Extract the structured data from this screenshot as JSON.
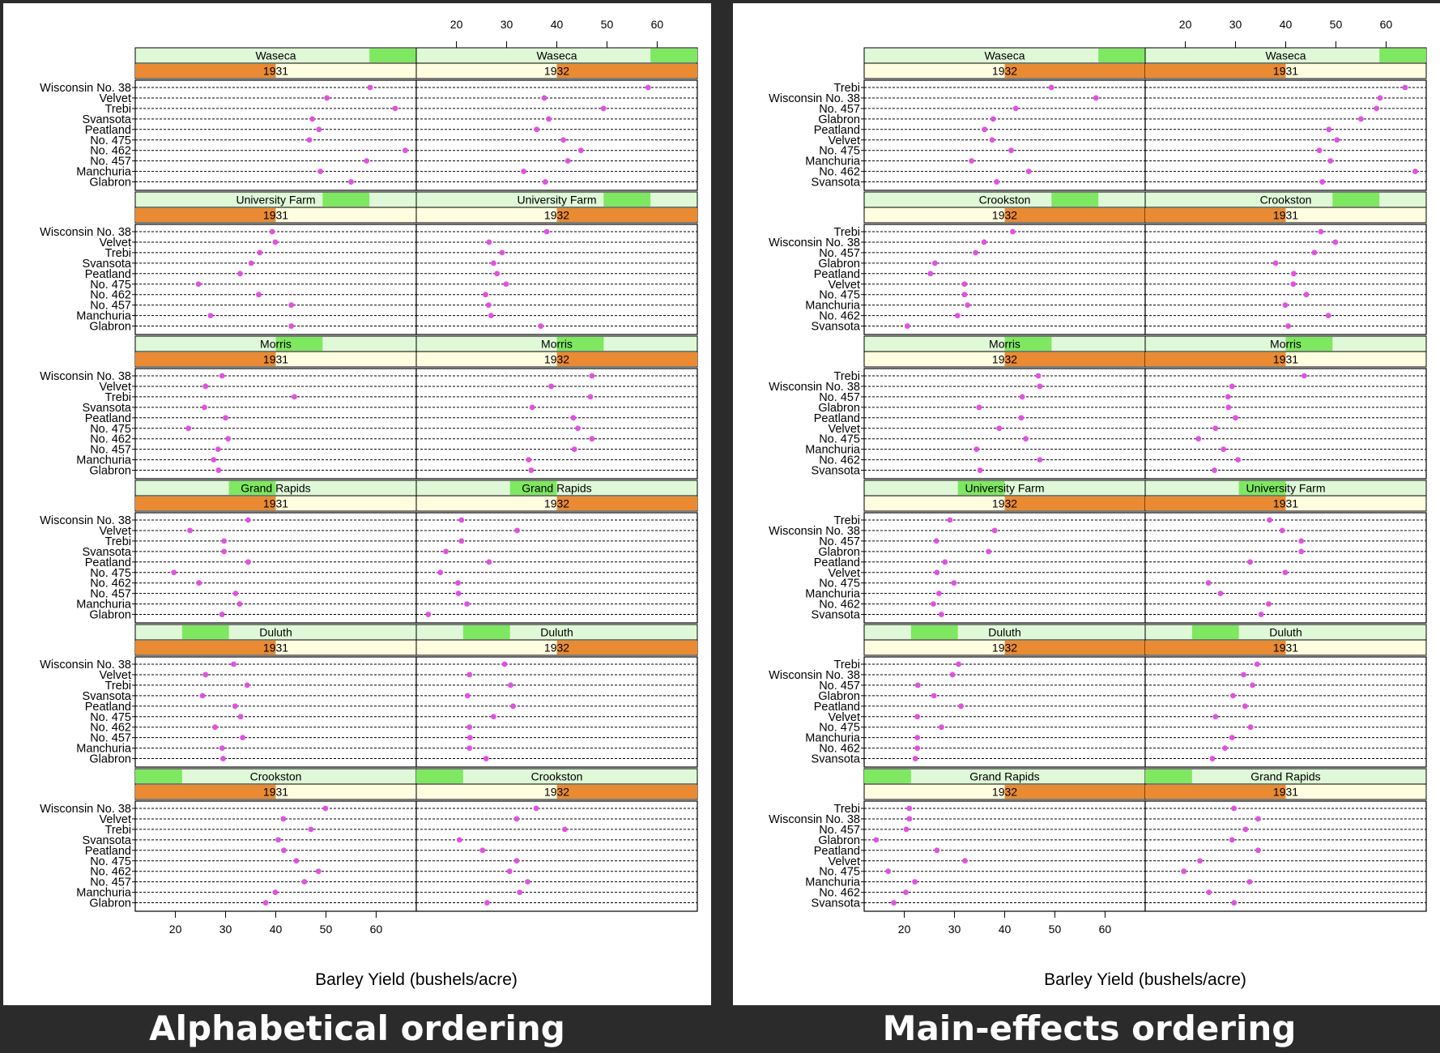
{
  "colors": {
    "background": "#2b2b2b",
    "panel_bg": "#ffffff",
    "location_strip": "#dff8d8",
    "location_bar": "#7ee860",
    "year_strip_light": "#fffde0",
    "year_strip_dark": "#ea8a32",
    "dot": "#e052e0",
    "caption": "#ffffff"
  },
  "figures": [
    {
      "caption": "Alphabetical ordering",
      "xlabel": "Barley Yield (bushels/acre)",
      "layout": "left",
      "columns": [
        "1931",
        "1932"
      ],
      "bottom_ticks": [
        "20",
        "30",
        "40",
        "50",
        "60"
      ],
      "top_ticks": [
        "20",
        "30",
        "40",
        "50",
        "60"
      ]
    },
    {
      "caption": "Main-effects ordering",
      "xlabel": "Barley Yield (bushels/acre)",
      "layout": "right",
      "columns": [
        "1932",
        "1931"
      ],
      "bottom_ticks": [
        "20",
        "30",
        "40",
        "50",
        "60"
      ],
      "top_ticks": [
        "20",
        "30",
        "40",
        "50",
        "60"
      ]
    }
  ],
  "chart_data": [
    {
      "type": "scatter",
      "title": "Alphabetical ordering",
      "xlabel": "Barley Yield (bushels/acre)",
      "xlim": [
        12,
        68
      ],
      "grid": true,
      "varieties": [
        "Wisconsin No. 38",
        "Velvet",
        "Trebi",
        "Svansota",
        "Peatland",
        "No. 475",
        "No. 462",
        "No. 457",
        "Manchuria",
        "Glabron"
      ],
      "panels": [
        {
          "site": "Waseca",
          "year": "1931",
          "values": [
            58.8,
            50.2,
            63.8,
            47.3,
            48.6,
            46.7,
            65.8,
            58.1,
            48.9,
            55.0
          ]
        },
        {
          "site": "Waseca",
          "year": "1932",
          "values": [
            58.2,
            37.5,
            49.3,
            38.4,
            36.0,
            41.3,
            44.8,
            42.2,
            33.4,
            37.7
          ]
        },
        {
          "site": "University Farm",
          "year": "1931",
          "values": [
            39.3,
            39.9,
            36.8,
            35.1,
            32.9,
            24.6,
            36.6,
            43.1,
            27.0,
            43.1
          ]
        },
        {
          "site": "University Farm",
          "year": "1932",
          "values": [
            38.0,
            26.5,
            29.1,
            27.4,
            28.1,
            29.9,
            25.8,
            26.4,
            26.9,
            36.8
          ]
        },
        {
          "site": "Morris",
          "year": "1931",
          "values": [
            29.3,
            26.0,
            43.7,
            25.8,
            30.0,
            22.6,
            30.5,
            28.5,
            27.6,
            28.6
          ]
        },
        {
          "site": "Morris",
          "year": "1932",
          "values": [
            47.0,
            38.9,
            46.7,
            35.1,
            43.3,
            44.2,
            47.0,
            43.5,
            34.4,
            34.9
          ]
        },
        {
          "site": "Grand Rapids",
          "year": "1931",
          "values": [
            34.5,
            22.9,
            29.7,
            29.7,
            34.5,
            19.7,
            24.7,
            32.0,
            32.8,
            29.3
          ]
        },
        {
          "site": "Grand Rapids",
          "year": "1932",
          "values": [
            21.0,
            32.1,
            21.0,
            17.9,
            26.5,
            16.8,
            20.3,
            20.4,
            22.1,
            14.4
          ]
        },
        {
          "site": "Duluth",
          "year": "1931",
          "values": [
            31.6,
            26.0,
            34.3,
            25.4,
            31.9,
            33.0,
            27.9,
            33.4,
            29.3,
            29.5
          ]
        },
        {
          "site": "Duluth",
          "year": "1932",
          "values": [
            29.6,
            22.6,
            30.8,
            22.2,
            31.3,
            27.4,
            22.6,
            22.7,
            22.6,
            25.9
          ]
        },
        {
          "site": "Crookston",
          "year": "1931",
          "values": [
            49.9,
            41.5,
            47.0,
            40.5,
            41.6,
            44.1,
            48.5,
            45.7,
            39.9,
            38.0
          ]
        },
        {
          "site": "Crookston",
          "year": "1932",
          "values": [
            35.9,
            32.0,
            41.6,
            20.6,
            25.2,
            32.0,
            30.6,
            34.2,
            32.6,
            26.1
          ]
        }
      ]
    },
    {
      "type": "scatter",
      "title": "Main-effects ordering",
      "xlabel": "Barley Yield (bushels/acre)",
      "xlim": [
        12,
        68
      ],
      "grid": true,
      "varieties": [
        "Trebi",
        "Wisconsin No. 38",
        "No. 457",
        "Glabron",
        "Peatland",
        "Velvet",
        "No. 475",
        "Manchuria",
        "No. 462",
        "Svansota"
      ],
      "panels": [
        {
          "site": "Waseca",
          "year": "1932",
          "values": [
            49.3,
            58.2,
            42.2,
            37.7,
            36.0,
            37.5,
            41.3,
            33.4,
            44.8,
            38.4
          ]
        },
        {
          "site": "Waseca",
          "year": "1931",
          "values": [
            63.8,
            58.8,
            58.1,
            55.0,
            48.6,
            50.2,
            46.7,
            48.9,
            65.8,
            47.3
          ]
        },
        {
          "site": "Crookston",
          "year": "1932",
          "values": [
            41.6,
            35.9,
            34.2,
            26.1,
            25.2,
            32.0,
            32.0,
            32.6,
            30.6,
            20.6
          ]
        },
        {
          "site": "Crookston",
          "year": "1931",
          "values": [
            47.0,
            49.9,
            45.7,
            38.0,
            41.6,
            41.5,
            44.1,
            39.9,
            48.5,
            40.5
          ]
        },
        {
          "site": "Morris",
          "year": "1932",
          "values": [
            46.7,
            47.0,
            43.5,
            34.9,
            43.3,
            38.9,
            44.2,
            34.4,
            47.0,
            35.1
          ]
        },
        {
          "site": "Morris",
          "year": "1931",
          "values": [
            43.7,
            29.3,
            28.5,
            28.6,
            30.0,
            26.0,
            22.6,
            27.6,
            30.5,
            25.8
          ]
        },
        {
          "site": "University Farm",
          "year": "1932",
          "values": [
            29.1,
            38.0,
            26.4,
            36.8,
            28.1,
            26.5,
            29.9,
            26.9,
            25.8,
            27.4
          ]
        },
        {
          "site": "University Farm",
          "year": "1931",
          "values": [
            36.8,
            39.3,
            43.1,
            43.1,
            32.9,
            39.9,
            24.6,
            27.0,
            36.6,
            35.1
          ]
        },
        {
          "site": "Duluth",
          "year": "1932",
          "values": [
            30.8,
            29.6,
            22.7,
            25.9,
            31.3,
            22.6,
            27.4,
            22.6,
            22.6,
            22.2
          ]
        },
        {
          "site": "Duluth",
          "year": "1931",
          "values": [
            34.3,
            31.6,
            33.4,
            29.5,
            31.9,
            26.0,
            33.0,
            29.3,
            27.9,
            25.4
          ]
        },
        {
          "site": "Grand Rapids",
          "year": "1932",
          "values": [
            21.0,
            21.0,
            20.4,
            14.4,
            26.5,
            32.1,
            16.8,
            22.1,
            20.3,
            17.9
          ]
        },
        {
          "site": "Grand Rapids",
          "year": "1931",
          "values": [
            29.7,
            34.5,
            32.0,
            29.3,
            34.5,
            22.9,
            19.7,
            32.8,
            24.7,
            29.7
          ]
        }
      ]
    }
  ]
}
